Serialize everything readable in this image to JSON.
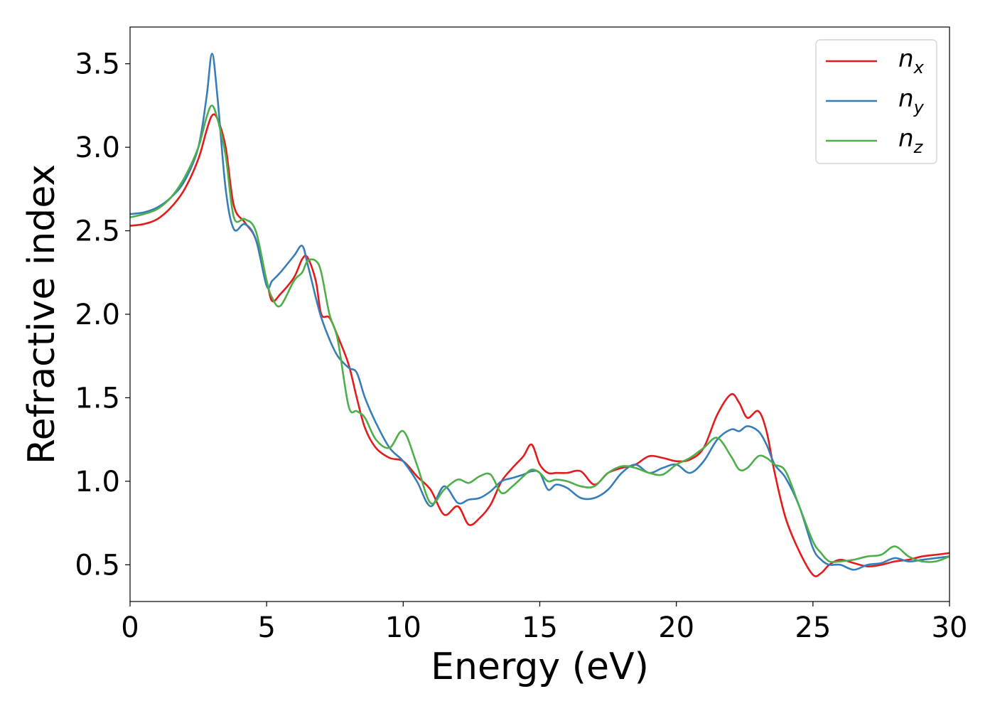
{
  "chart_data": {
    "type": "line",
    "xlabel": "Energy (eV)",
    "ylabel": "Refractive index",
    "xlim": [
      0,
      30
    ],
    "ylim": [
      0.28,
      3.72
    ],
    "xticks": [
      "0",
      "5",
      "10",
      "15",
      "20",
      "25",
      "30"
    ],
    "yticks": [
      "0.5",
      "1.0",
      "1.5",
      "2.0",
      "2.5",
      "3.0",
      "3.5"
    ],
    "grid": false,
    "legend_position": "top-right",
    "series": [
      {
        "name": "n_x",
        "label_main": "n",
        "label_sub": "x",
        "color": "#e41a1c",
        "x": [
          0,
          0.5,
          1,
          1.5,
          2,
          2.5,
          2.8,
          3.0,
          3.2,
          3.5,
          3.8,
          4.2,
          4.6,
          5.0,
          5.2,
          5.5,
          6.0,
          6.3,
          6.5,
          6.8,
          7.0,
          7.3,
          7.6,
          8.0,
          8.3,
          8.6,
          9.0,
          9.5,
          10.0,
          10.5,
          11.0,
          11.5,
          12.0,
          12.4,
          12.8,
          13.2,
          13.6,
          14.0,
          14.4,
          14.7,
          15.0,
          15.3,
          15.6,
          16.0,
          16.5,
          17.0,
          17.5,
          18.0,
          18.5,
          19.0,
          19.5,
          20.0,
          20.5,
          21.0,
          21.5,
          22.0,
          22.3,
          22.6,
          23.0,
          23.3,
          23.6,
          24.0,
          24.5,
          25.0,
          25.3,
          25.6,
          26.0,
          26.5,
          27.0,
          27.5,
          28.0,
          28.5,
          29.0,
          29.5,
          30.0
        ],
        "y": [
          2.53,
          2.54,
          2.57,
          2.64,
          2.75,
          2.93,
          3.1,
          3.19,
          3.17,
          3.0,
          2.65,
          2.55,
          2.45,
          2.2,
          2.08,
          2.12,
          2.22,
          2.33,
          2.34,
          2.2,
          2.0,
          1.98,
          1.87,
          1.7,
          1.5,
          1.32,
          1.2,
          1.14,
          1.12,
          1.03,
          0.95,
          0.8,
          0.85,
          0.74,
          0.78,
          0.86,
          1.0,
          1.08,
          1.15,
          1.22,
          1.1,
          1.05,
          1.05,
          1.05,
          1.06,
          0.98,
          1.05,
          1.08,
          1.1,
          1.15,
          1.14,
          1.12,
          1.13,
          1.2,
          1.4,
          1.52,
          1.47,
          1.38,
          1.42,
          1.3,
          1.05,
          0.78,
          0.58,
          0.44,
          0.45,
          0.5,
          0.53,
          0.51,
          0.49,
          0.5,
          0.52,
          0.53,
          0.55,
          0.56,
          0.57
        ]
      },
      {
        "name": "n_y",
        "label_main": "n",
        "label_sub": "y",
        "color": "#377eb8",
        "x": [
          0,
          0.5,
          1,
          1.5,
          2,
          2.5,
          2.8,
          3.0,
          3.2,
          3.5,
          3.8,
          4.2,
          4.6,
          5.0,
          5.2,
          5.5,
          6.0,
          6.3,
          6.5,
          6.8,
          7.0,
          7.3,
          7.6,
          8.0,
          8.3,
          8.6,
          9.0,
          9.5,
          10.0,
          10.5,
          11.0,
          11.5,
          12.0,
          12.4,
          12.8,
          13.2,
          13.6,
          14.0,
          14.4,
          14.7,
          15.0,
          15.3,
          15.6,
          16.0,
          16.5,
          17.0,
          17.5,
          18.0,
          18.5,
          19.0,
          19.5,
          20.0,
          20.5,
          21.0,
          21.5,
          22.0,
          22.3,
          22.6,
          23.0,
          23.3,
          23.6,
          24.0,
          24.5,
          25.0,
          25.3,
          25.6,
          26.0,
          26.5,
          27.0,
          27.5,
          28.0,
          28.5,
          29.0,
          29.5,
          30.0
        ],
        "y": [
          2.6,
          2.61,
          2.64,
          2.7,
          2.8,
          3.0,
          3.3,
          3.56,
          3.3,
          2.75,
          2.51,
          2.54,
          2.45,
          2.17,
          2.2,
          2.25,
          2.35,
          2.41,
          2.3,
          2.1,
          1.98,
          1.85,
          1.75,
          1.68,
          1.65,
          1.5,
          1.35,
          1.2,
          1.12,
          1.0,
          0.85,
          0.97,
          0.87,
          0.89,
          0.9,
          0.94,
          1.0,
          1.02,
          1.04,
          1.06,
          1.05,
          0.95,
          0.98,
          0.96,
          0.9,
          0.9,
          0.95,
          1.05,
          1.1,
          1.05,
          1.08,
          1.1,
          1.05,
          1.12,
          1.25,
          1.31,
          1.3,
          1.33,
          1.3,
          1.22,
          1.1,
          1.02,
          0.85,
          0.6,
          0.53,
          0.5,
          0.5,
          0.47,
          0.5,
          0.51,
          0.54,
          0.52,
          0.53,
          0.54,
          0.55
        ]
      },
      {
        "name": "n_z",
        "label_main": "n",
        "label_sub": "z",
        "color": "#4daf4a",
        "x": [
          0,
          0.5,
          1,
          1.5,
          2,
          2.5,
          2.8,
          3.0,
          3.2,
          3.5,
          3.8,
          4.2,
          4.6,
          5.0,
          5.2,
          5.5,
          6.0,
          6.3,
          6.5,
          6.8,
          7.0,
          7.3,
          7.6,
          8.0,
          8.3,
          8.6,
          9.0,
          9.5,
          10.0,
          10.5,
          11.0,
          11.5,
          12.0,
          12.4,
          12.8,
          13.2,
          13.6,
          14.0,
          14.4,
          14.7,
          15.0,
          15.3,
          15.6,
          16.0,
          16.5,
          17.0,
          17.5,
          18.0,
          18.5,
          19.0,
          19.5,
          20.0,
          20.5,
          21.0,
          21.5,
          22.0,
          22.3,
          22.6,
          23.0,
          23.3,
          23.6,
          24.0,
          24.5,
          25.0,
          25.3,
          25.6,
          26.0,
          26.5,
          27.0,
          27.5,
          28.0,
          28.5,
          29.0,
          29.5,
          30.0
        ],
        "y": [
          2.58,
          2.6,
          2.63,
          2.7,
          2.82,
          3.0,
          3.18,
          3.25,
          3.17,
          2.95,
          2.58,
          2.57,
          2.5,
          2.2,
          2.1,
          2.05,
          2.2,
          2.25,
          2.32,
          2.32,
          2.25,
          2.0,
          1.85,
          1.45,
          1.42,
          1.38,
          1.25,
          1.2,
          1.3,
          1.1,
          0.87,
          0.95,
          1.01,
          0.99,
          1.03,
          1.04,
          0.93,
          0.97,
          1.03,
          1.07,
          1.05,
          1.0,
          1.01,
          1.0,
          0.97,
          0.97,
          1.05,
          1.09,
          1.08,
          1.05,
          1.04,
          1.1,
          1.14,
          1.2,
          1.26,
          1.15,
          1.07,
          1.08,
          1.15,
          1.14,
          1.1,
          1.06,
          0.85,
          0.64,
          0.57,
          0.52,
          0.52,
          0.53,
          0.55,
          0.56,
          0.61,
          0.55,
          0.52,
          0.52,
          0.55
        ]
      }
    ]
  }
}
